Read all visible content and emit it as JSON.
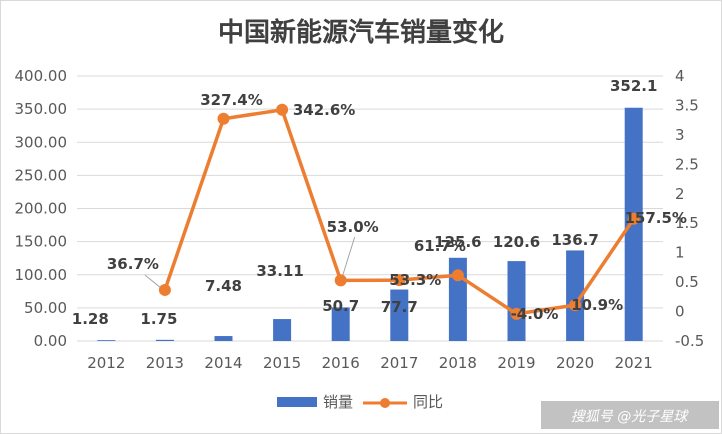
{
  "chart_data": {
    "type": "bar+line",
    "title": "中国新能源汽车销量变化",
    "categories": [
      "2012",
      "2013",
      "2014",
      "2015",
      "2016",
      "2017",
      "2018",
      "2019",
      "2020",
      "2021"
    ],
    "series": [
      {
        "name": "销量",
        "type": "bar",
        "axis": "left",
        "color": "#4472c4",
        "values": [
          1.28,
          1.75,
          7.48,
          33.11,
          50.7,
          77.7,
          125.6,
          120.6,
          136.7,
          352.1
        ],
        "labels": [
          "1.28",
          "1.75",
          "7.48",
          "33.11",
          "50.7",
          "77.7",
          "125.6",
          "120.6",
          "136.7",
          "352.1"
        ]
      },
      {
        "name": "同比",
        "type": "line",
        "axis": "right",
        "color": "#ed7d31",
        "values": [
          null,
          0.367,
          3.274,
          3.426,
          0.53,
          0.533,
          0.617,
          -0.04,
          0.109,
          1.575
        ],
        "labels": [
          "",
          "36.7%",
          "327.4%",
          "342.6%",
          "53.0%",
          "53.3%",
          "61.7%",
          "-4.0%",
          "10.9%",
          "157.5%"
        ]
      }
    ],
    "y_left": {
      "range": [
        0,
        400
      ],
      "ticks": [
        "0.00",
        "50.00",
        "100.00",
        "150.00",
        "200.00",
        "250.00",
        "300.00",
        "350.00",
        "400.00"
      ]
    },
    "y_right": {
      "range": [
        -0.5,
        4
      ],
      "ticks": [
        "-0.5",
        "0",
        "0.5",
        "1",
        "1.5",
        "2",
        "2.5",
        "3",
        "3.5",
        "4"
      ]
    },
    "grid": true,
    "legend": "bottom-center"
  },
  "watermark": "搜狐号 @光子星球"
}
